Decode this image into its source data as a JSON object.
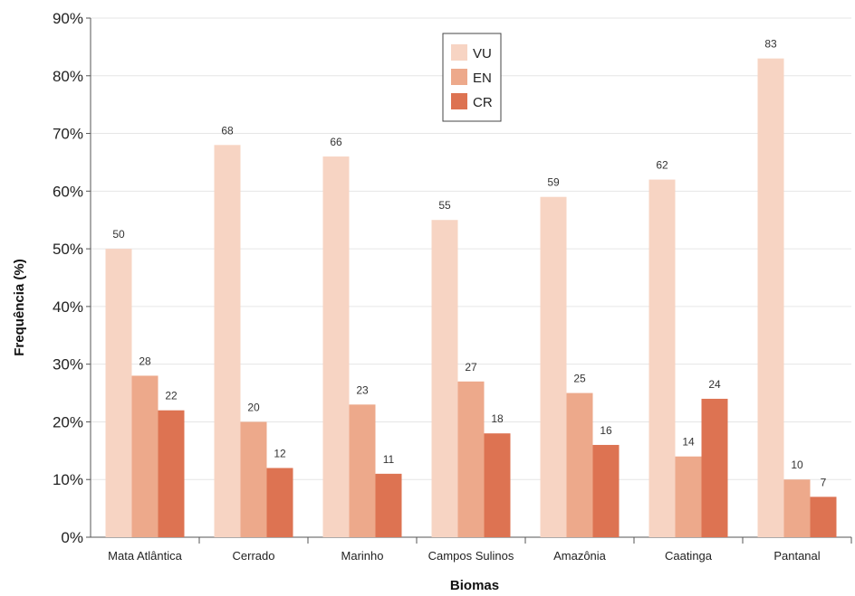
{
  "chart_data": {
    "type": "bar",
    "xlabel": "Biomas",
    "ylabel": "Frequência (%)",
    "ylim": [
      0,
      90
    ],
    "yticks": [
      "0%",
      "10%",
      "20%",
      "30%",
      "40%",
      "50%",
      "60%",
      "70%",
      "80%",
      "90%"
    ],
    "categories": [
      "Mata Atlântica",
      "Cerrado",
      "Marinho",
      "Campos Sulinos",
      "Amazônia",
      "Caatinga",
      "Pantanal"
    ],
    "series": [
      {
        "name": "VU",
        "color": "#f7d4c3",
        "values": [
          50,
          68,
          66,
          55,
          59,
          62,
          83
        ]
      },
      {
        "name": "EN",
        "color": "#eda98b",
        "values": [
          28,
          20,
          23,
          27,
          25,
          14,
          10
        ]
      },
      {
        "name": "CR",
        "color": "#dd7352",
        "values": [
          22,
          12,
          11,
          18,
          16,
          24,
          7
        ]
      }
    ],
    "legend_position": "top-center",
    "grid": true
  }
}
